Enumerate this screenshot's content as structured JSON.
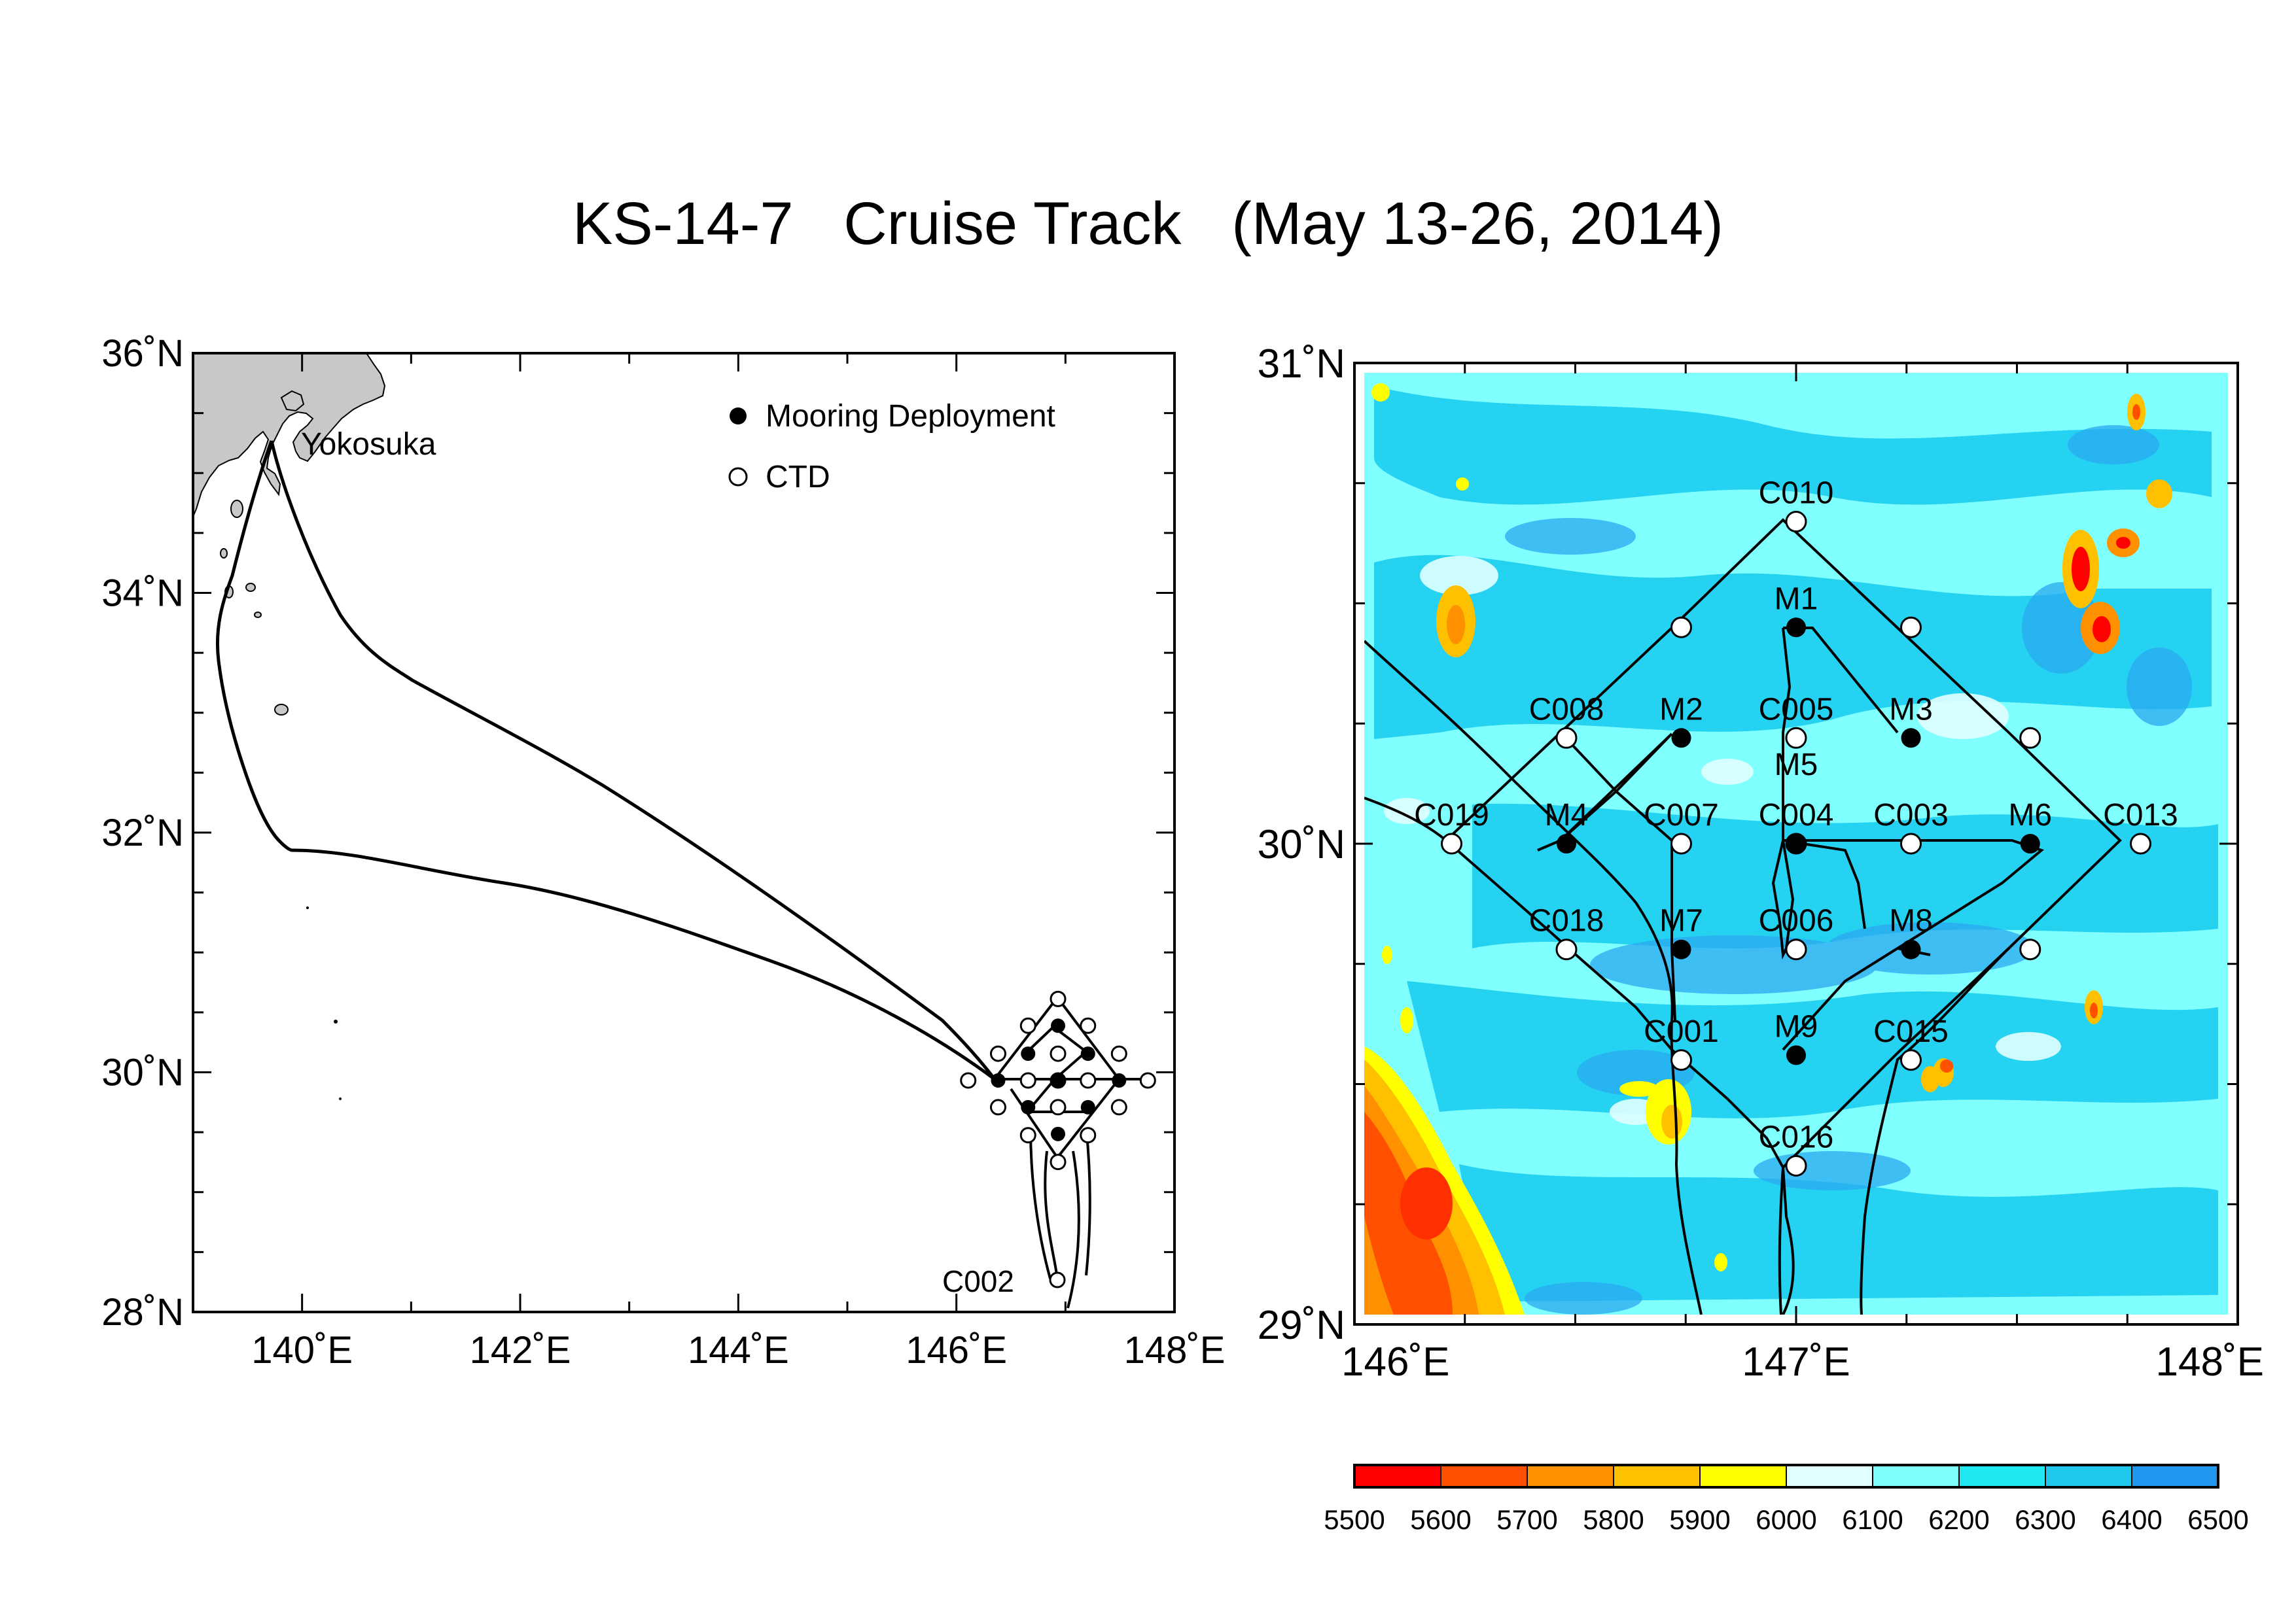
{
  "title": "KS-14-7   Cruise Track   (May 13-26, 2014)",
  "colors": {
    "land": "#c8c8c8",
    "track": "#000000",
    "mooring_fill": "#000000",
    "ctd_fill": "#ffffff",
    "colorbar": [
      "#ff0000",
      "#ff5000",
      "#ff9000",
      "#ffc000",
      "#ffff00",
      "#e0ffff",
      "#80ffff",
      "#20e8f0",
      "#20c8f0",
      "#2098f0"
    ]
  },
  "left_map": {
    "lon_range": [
      139,
      148
    ],
    "lat_range": [
      28,
      36
    ],
    "lon_ticks": [
      "140˚E",
      "142˚E",
      "144˚E",
      "146˚E",
      "148˚E"
    ],
    "lat_ticks": [
      "28˚N",
      "30˚N",
      "32˚N",
      "34˚N",
      "36˚N"
    ],
    "place_label": "Yokosuka",
    "legend": {
      "mooring": "Mooring Deployment",
      "ctd": "CTD"
    },
    "station_label": "C002"
  },
  "right_map": {
    "lon_range": [
      146,
      148
    ],
    "lat_range": [
      29,
      31
    ],
    "lon_ticks": [
      "146˚E",
      "147˚E",
      "148˚E"
    ],
    "lat_ticks": [
      "29˚N",
      "30˚N",
      "31˚N"
    ],
    "moorings": [
      {
        "name": "M1",
        "lon": 147.0,
        "lat": 30.45
      },
      {
        "name": "M2",
        "lon": 146.74,
        "lat": 30.22
      },
      {
        "name": "M3",
        "lon": 147.26,
        "lat": 30.22
      },
      {
        "name": "M4",
        "lon": 146.48,
        "lat": 30.0
      },
      {
        "name": "M5",
        "lon": 147.0,
        "lat": 30.0
      },
      {
        "name": "M6",
        "lon": 147.53,
        "lat": 30.0
      },
      {
        "name": "M7",
        "lon": 146.74,
        "lat": 29.78
      },
      {
        "name": "M8",
        "lon": 147.26,
        "lat": 29.78
      },
      {
        "name": "M9",
        "lon": 147.0,
        "lat": 29.56
      }
    ],
    "ctd_stations": [
      {
        "name": "C010",
        "lon": 147.0,
        "lat": 30.67
      },
      {
        "name": "",
        "lon": 146.74,
        "lat": 30.45
      },
      {
        "name": "",
        "lon": 147.26,
        "lat": 30.45
      },
      {
        "name": "C008",
        "lon": 146.48,
        "lat": 30.22
      },
      {
        "name": "C005",
        "lon": 147.0,
        "lat": 30.22
      },
      {
        "name": "",
        "lon": 147.53,
        "lat": 30.22
      },
      {
        "name": "C019",
        "lon": 146.22,
        "lat": 30.0
      },
      {
        "name": "C007",
        "lon": 146.74,
        "lat": 30.0
      },
      {
        "name": "C004",
        "lon": 147.0,
        "lat": 30.0
      },
      {
        "name": "C003",
        "lon": 147.26,
        "lat": 30.0
      },
      {
        "name": "C013",
        "lon": 147.78,
        "lat": 30.0
      },
      {
        "name": "C018",
        "lon": 146.48,
        "lat": 29.78
      },
      {
        "name": "C006",
        "lon": 147.0,
        "lat": 29.78
      },
      {
        "name": "",
        "lon": 147.53,
        "lat": 29.78
      },
      {
        "name": "C001",
        "lon": 146.74,
        "lat": 29.55
      },
      {
        "name": "C015",
        "lon": 147.26,
        "lat": 29.55
      },
      {
        "name": "C016",
        "lon": 147.0,
        "lat": 29.33
      }
    ]
  },
  "colorbar": {
    "labels": [
      "5500",
      "5600",
      "5700",
      "5800",
      "5900",
      "6000",
      "6100",
      "6200",
      "6300",
      "6400",
      "6500"
    ]
  }
}
